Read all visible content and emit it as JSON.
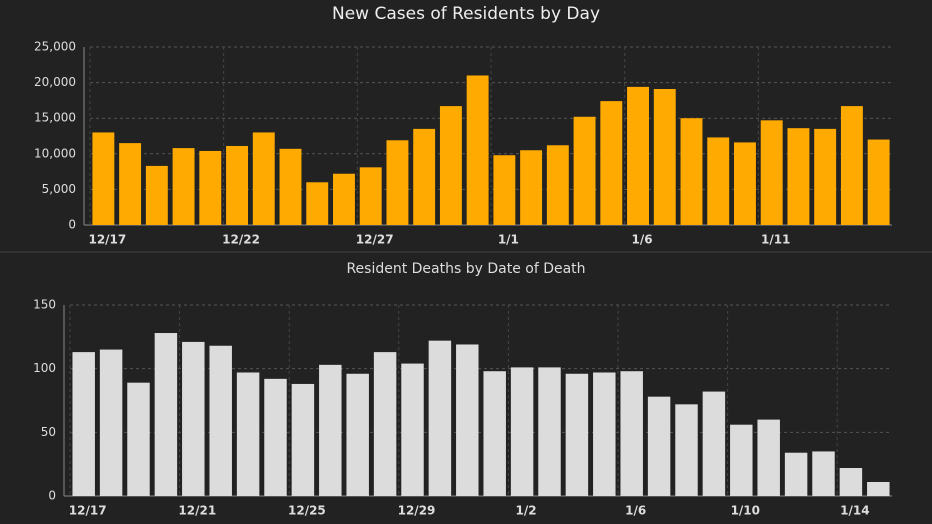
{
  "chart_data": [
    {
      "type": "bar",
      "title": "New Cases of Residents by Day",
      "categories": [
        "12/17",
        null,
        null,
        null,
        null,
        "12/22",
        null,
        null,
        null,
        null,
        "12/27",
        null,
        null,
        null,
        null,
        "1/1",
        null,
        null,
        null,
        null,
        "1/6",
        null,
        null,
        null,
        null,
        "1/11",
        null,
        null,
        null,
        null
      ],
      "values": [
        13000,
        11500,
        8300,
        10800,
        10400,
        11100,
        13000,
        10700,
        6000,
        7200,
        8100,
        11900,
        13500,
        16700,
        21000,
        9800,
        10500,
        11200,
        15200,
        17400,
        19400,
        19100,
        15000,
        12300,
        11600,
        14700,
        13600,
        13500,
        16700,
        12000
      ],
      "color": "#ffaa00",
      "ylim": [
        0,
        25000
      ],
      "yticks": [
        0,
        {
          "value": 5000,
          "label": "5,000"
        },
        {
          "value": 10000,
          "label": "10,000"
        },
        {
          "value": 15000,
          "label": "15,000"
        },
        {
          "value": 20000,
          "label": "20,000"
        },
        {
          "value": 25000,
          "label": "25,000"
        }
      ],
      "grid": true
    },
    {
      "type": "bar",
      "title": "Resident Deaths by Date of Death",
      "categories": [
        "12/17",
        null,
        null,
        null,
        "12/21",
        null,
        null,
        null,
        "12/25",
        null,
        null,
        null,
        "12/29",
        null,
        null,
        null,
        "1/2",
        null,
        null,
        null,
        "1/6",
        null,
        null,
        null,
        "1/10",
        null,
        null,
        null,
        "1/14",
        null
      ],
      "values": [
        113,
        115,
        89,
        128,
        121,
        118,
        97,
        92,
        88,
        103,
        96,
        113,
        104,
        122,
        119,
        98,
        101,
        101,
        96,
        97,
        98,
        78,
        72,
        82,
        56,
        60,
        34,
        35,
        22,
        11
      ],
      "color": "#dcdcdc",
      "ylim": [
        0,
        150
      ],
      "yticks": [
        0,
        50,
        100,
        150
      ],
      "grid": true
    }
  ]
}
